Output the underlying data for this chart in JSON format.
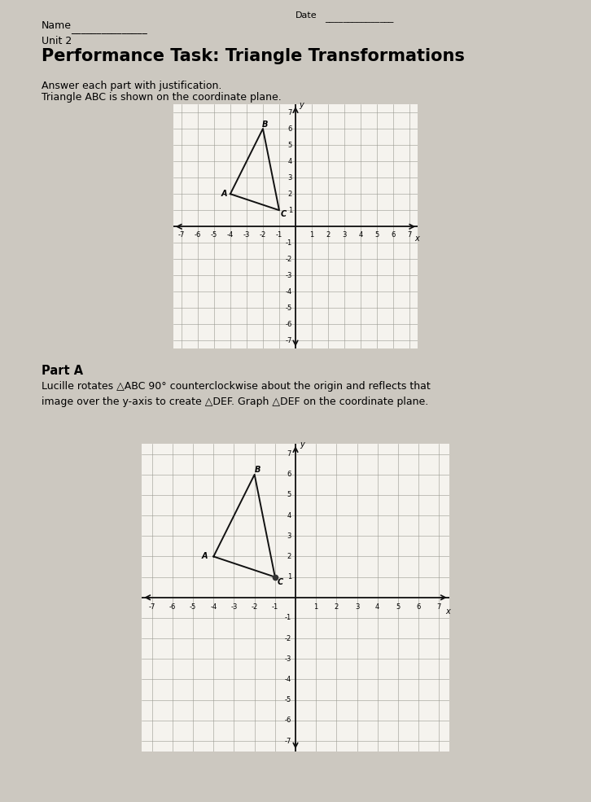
{
  "bg_color": "#ccc8c0",
  "grid_bg": "#f5f3ee",
  "title_line1": "Unit 2",
  "title_line2": "Performance Task: Triangle Transformations",
  "subtitle1": "Answer each part with justification.",
  "subtitle2": "Triangle ABC is shown on the coordinate plane.",
  "part_a_title": "Part A",
  "part_a_text": "Lucille rotates △ABC 90° counterclockwise about the origin and reflects that\nimage over the y-axis to create △DEF. Graph △DEF on the coordinate plane.",
  "name_label": "Name",
  "date_label": "Date",
  "grid_color": "#999990",
  "axis_color": "#111111",
  "tri_color": "#111111",
  "grid_range": 7,
  "A": [
    -4,
    2
  ],
  "B": [
    -2,
    6
  ],
  "C": [
    -1,
    1
  ],
  "label_fs": 7,
  "tick_fs": 6,
  "title_fs": 15,
  "subtitle_fs": 9,
  "part_a_fs": 9
}
